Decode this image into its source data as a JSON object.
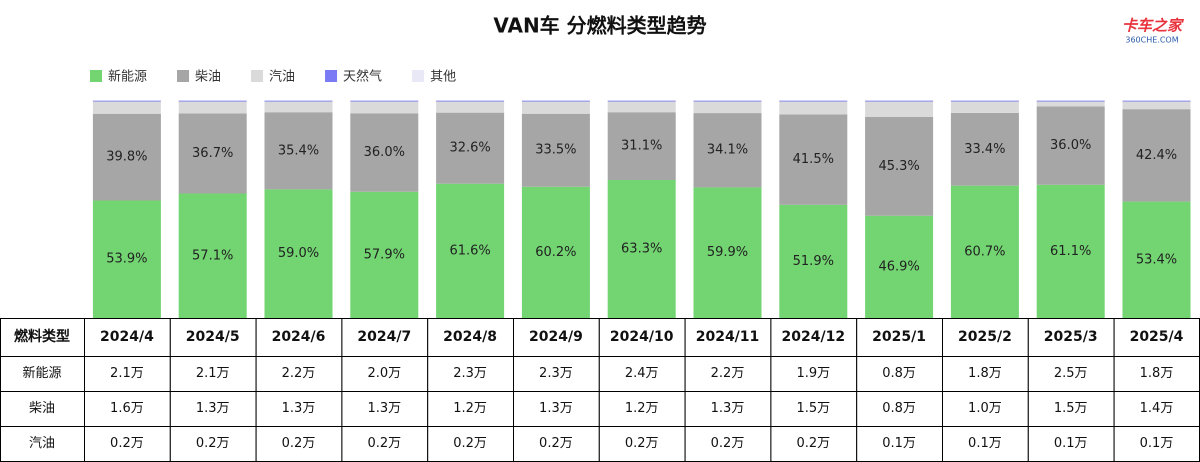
{
  "chart_data": {
    "type": "stacked-bar",
    "title": "VAN车 分燃料类型趋势",
    "categories": [
      "2024/4",
      "2024/5",
      "2024/6",
      "2024/7",
      "2024/8",
      "2024/9",
      "2024/10",
      "2024/11",
      "2024/12",
      "2025/1",
      "2025/2",
      "2025/3",
      "2025/4"
    ],
    "ylim": [
      0,
      100
    ],
    "series": [
      {
        "name": "新能源",
        "color": "#72d572",
        "values": [
          53.9,
          57.1,
          59.0,
          57.9,
          61.6,
          60.2,
          63.3,
          59.9,
          51.9,
          46.9,
          60.7,
          61.1,
          53.4
        ],
        "value_labels": [
          "53.9%",
          "57.1%",
          "59.0%",
          "57.9%",
          "61.6%",
          "60.2%",
          "63.3%",
          "59.9%",
          "51.9%",
          "46.9%",
          "60.7%",
          "61.1%",
          "53.4%"
        ]
      },
      {
        "name": "柴油",
        "color": "#a6a6a6",
        "values": [
          39.8,
          36.7,
          35.4,
          36.0,
          32.6,
          33.5,
          31.1,
          34.1,
          41.5,
          45.3,
          33.4,
          36.0,
          42.4
        ],
        "value_labels": [
          "39.8%",
          "36.7%",
          "35.4%",
          "36.0%",
          "32.6%",
          "33.5%",
          "31.1%",
          "34.1%",
          "41.5%",
          "45.3%",
          "33.4%",
          "36.0%",
          "42.4%"
        ]
      },
      {
        "name": "汽油",
        "color": "#dadada",
        "values": [
          5.6,
          5.5,
          4.9,
          5.4,
          5.1,
          5.6,
          4.9,
          5.3,
          5.9,
          7.1,
          5.2,
          2.2,
          3.5
        ]
      },
      {
        "name": "天然气",
        "color": "#7b7bf5",
        "values": [
          0.4,
          0.4,
          0.4,
          0.4,
          0.4,
          0.4,
          0.4,
          0.4,
          0.4,
          0.4,
          0.4,
          0.4,
          0.4
        ]
      },
      {
        "name": "其他",
        "color": "#e8e8f6",
        "values": [
          0.3,
          0.3,
          0.3,
          0.3,
          0.3,
          0.3,
          0.3,
          0.3,
          0.3,
          0.3,
          0.3,
          0.3,
          0.3
        ]
      }
    ]
  },
  "logo": {
    "name": "卡车之家",
    "site": "360CHE.COM"
  },
  "table": {
    "header": [
      "燃料类型",
      "2024/4",
      "2024/5",
      "2024/6",
      "2024/7",
      "2024/8",
      "2024/9",
      "2024/10",
      "2024/11",
      "2024/12",
      "2025/1",
      "2025/2",
      "2025/3",
      "2025/4"
    ],
    "rows": [
      [
        "新能源",
        "2.1万",
        "2.1万",
        "2.2万",
        "2.0万",
        "2.3万",
        "2.3万",
        "2.4万",
        "2.2万",
        "1.9万",
        "0.8万",
        "1.8万",
        "2.5万",
        "1.8万"
      ],
      [
        "柴油",
        "1.6万",
        "1.3万",
        "1.3万",
        "1.3万",
        "1.2万",
        "1.3万",
        "1.2万",
        "1.3万",
        "1.5万",
        "0.8万",
        "1.0万",
        "1.5万",
        "1.4万"
      ],
      [
        "汽油",
        "0.2万",
        "0.2万",
        "0.2万",
        "0.2万",
        "0.2万",
        "0.2万",
        "0.2万",
        "0.2万",
        "0.2万",
        "0.1万",
        "0.1万",
        "0.1万",
        "0.1万"
      ]
    ]
  }
}
